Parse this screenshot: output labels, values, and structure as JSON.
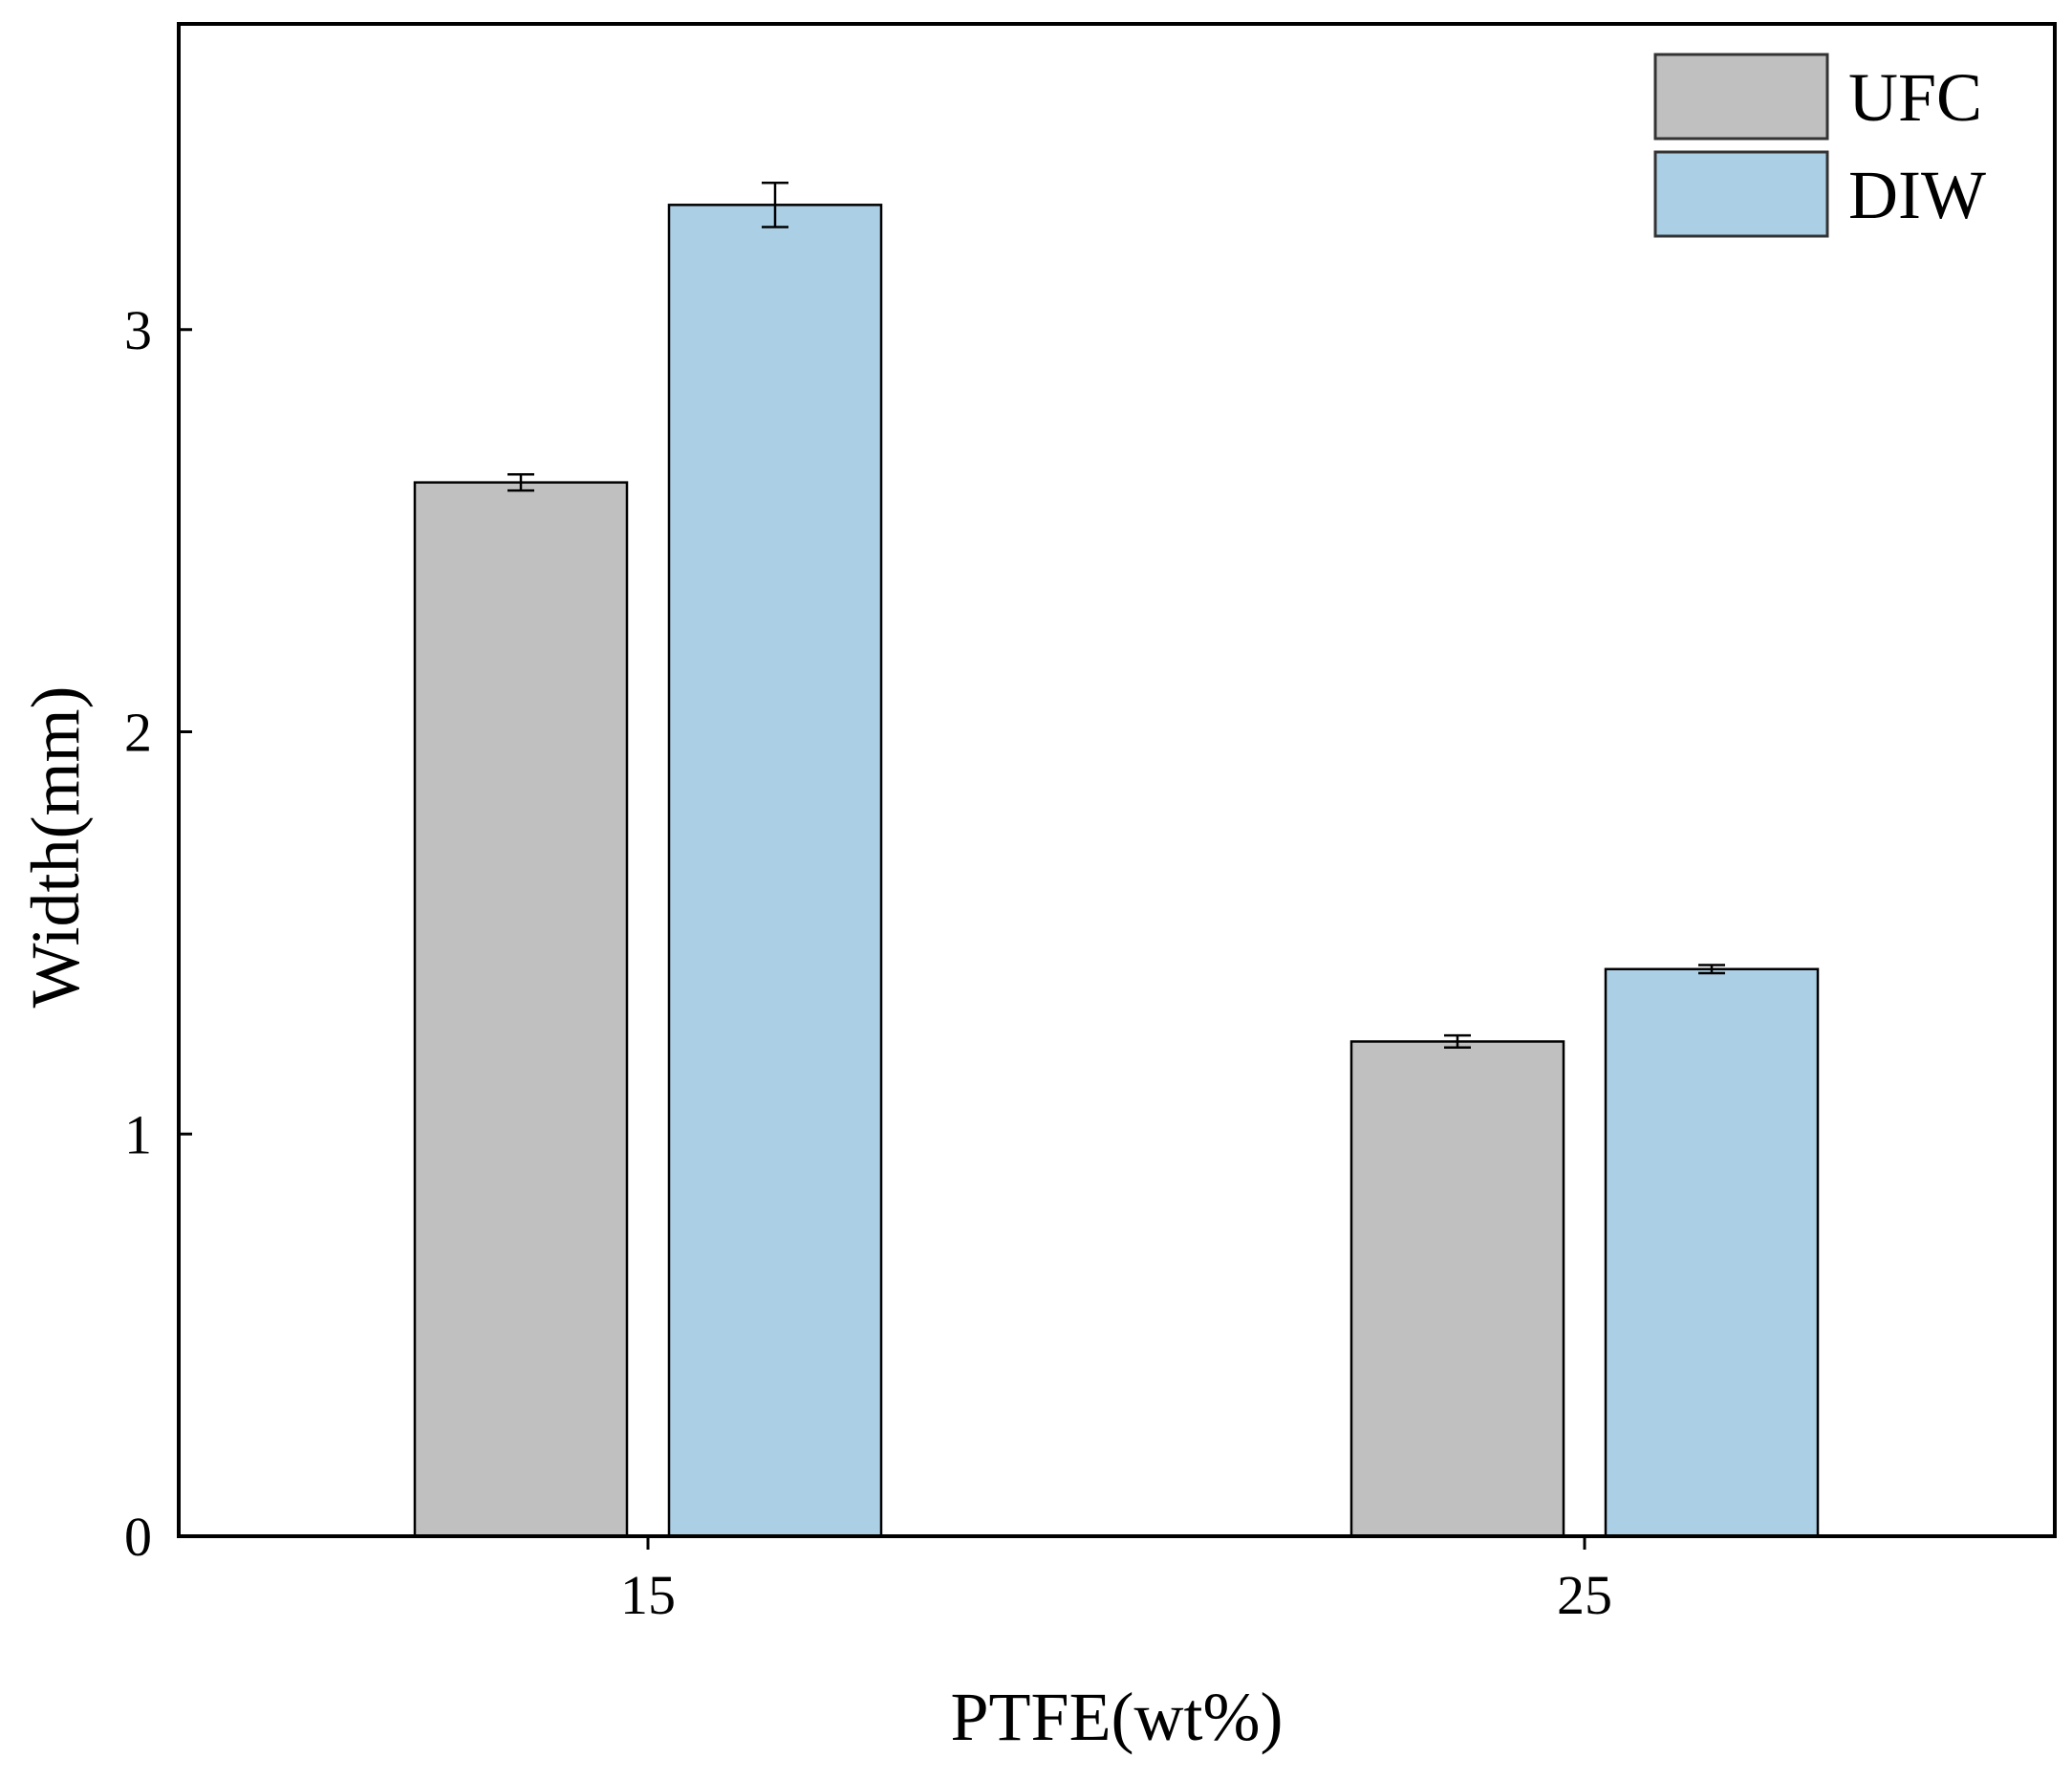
{
  "chart_data": {
    "type": "bar",
    "xlabel": "PTFE(wt%)",
    "ylabel": "Width(mm)",
    "categories": [
      "15",
      "25"
    ],
    "series": [
      {
        "name": "UFC",
        "values": [
          2.62,
          1.23
        ],
        "errors": [
          0.02,
          0.015
        ],
        "color": "#c0c0c0"
      },
      {
        "name": "DIW",
        "values": [
          3.31,
          1.41
        ],
        "errors": [
          0.055,
          0.01
        ],
        "color": "#abcfe5"
      }
    ],
    "ylim": [
      0,
      3.76
    ],
    "yticks": [
      "0",
      "1",
      "2",
      "3"
    ],
    "legend_position": "top-right",
    "grid": false
  }
}
